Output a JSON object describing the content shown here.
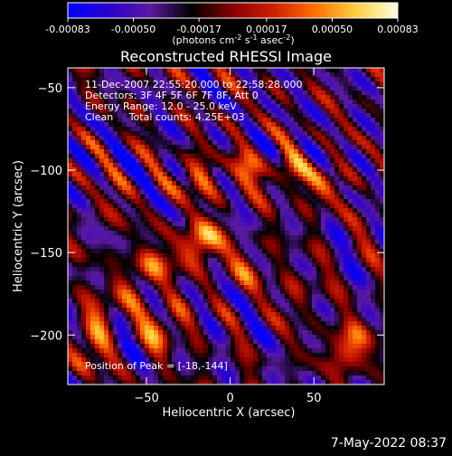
{
  "colorbar": {
    "tick_labels": [
      "-0.00083",
      "-0.00050",
      "-0.00017",
      "0.00017",
      "0.00050",
      "0.00083"
    ],
    "tick_values": [
      -0.00083,
      -0.0005,
      -0.00017,
      0.00017,
      0.0005,
      0.00083
    ],
    "range": [
      -0.00083,
      0.00083
    ],
    "units_label": "(photons cm",
    "units_exp1": "-2",
    "units_mid1": " s",
    "units_exp2": "-1",
    "units_mid2": " asec",
    "units_exp3": "-2",
    "units_end": ")",
    "colormap": [
      "#0000ff",
      "#2a00cc",
      "#5a1aa0",
      "#000000",
      "#8a0000",
      "#d02000",
      "#ff7000",
      "#ffd040",
      "#ffffe0"
    ]
  },
  "chart_data": {
    "type": "heatmap",
    "title": "Reconstructed RHESSI Image",
    "xlabel": "Heliocentric X (arcsec)",
    "ylabel": "Heliocentric Y (arcsec)",
    "xlim": [
      -97,
      92
    ],
    "ylim": [
      -230,
      -38
    ],
    "x_ticks": [
      -50,
      0,
      50
    ],
    "x_tick_labels": [
      "−50",
      "0",
      "50"
    ],
    "y_ticks": [
      -50,
      -100,
      -150,
      -200
    ],
    "y_tick_labels": [
      "−50",
      "−100",
      "−150",
      "−200"
    ],
    "annotations": [
      "11-Dec-2007 22:55:20.000 to 22:58:28.000",
      "Detectors: 3F 4F 5F 6F 7F 8F, Att 0",
      "Energy Range: 12.0 - 25.0 keV",
      "Clean     Total counts: 4.25E+03"
    ],
    "peak_label": "Position of Peak = [-18,-144]",
    "peak": [
      -18,
      -144
    ],
    "sources": [
      {
        "x": -18,
        "y": -144,
        "intensity": 0.00083
      },
      {
        "x": -48,
        "y": -160,
        "intensity": 0.0006
      },
      {
        "x": -75,
        "y": -185,
        "intensity": 0.0005
      },
      {
        "x": -40,
        "y": -195,
        "intensity": 0.00055
      },
      {
        "x": -85,
        "y": -210,
        "intensity": 0.00045
      },
      {
        "x": -20,
        "y": -105,
        "intensity": 0.00045
      },
      {
        "x": 10,
        "y": -100,
        "intensity": 0.00045
      },
      {
        "x": 35,
        "y": -100,
        "intensity": 0.0004
      },
      {
        "x": 55,
        "y": -110,
        "intensity": 0.0004
      },
      {
        "x": 72,
        "y": -207,
        "intensity": 0.0007
      },
      {
        "x": 10,
        "y": -160,
        "intensity": 0.00035
      },
      {
        "x": 40,
        "y": -175,
        "intensity": 0.00025
      },
      {
        "x": -70,
        "y": -120,
        "intensity": 0.0002
      }
    ]
  },
  "timestamp": "7-May-2022 08:37"
}
